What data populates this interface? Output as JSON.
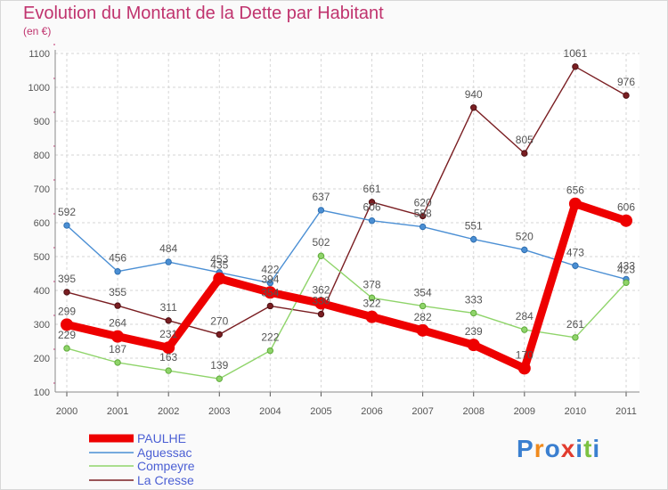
{
  "chart_data": {
    "type": "line",
    "title": "Evolution du Montant de la Dette par Habitant",
    "subtitle": "(en €)",
    "xlabel": "",
    "ylabel": "",
    "ylim": [
      100,
      1100
    ],
    "yticks": [
      100,
      200,
      300,
      400,
      500,
      600,
      700,
      800,
      900,
      1000,
      1100
    ],
    "categories": [
      "2000",
      "2001",
      "2002",
      "2003",
      "2004",
      "2005",
      "2006",
      "2007",
      "2008",
      "2009",
      "2010",
      "2011"
    ],
    "series": [
      {
        "name": "PAULHE",
        "color": "#ee0000",
        "values": [
          299,
          264,
          231,
          435,
          394,
          362,
          322,
          282,
          239,
          170,
          656,
          606
        ],
        "labels": [
          "299",
          "264",
          "231",
          "435",
          "394",
          "362",
          "322",
          "282",
          "239",
          "170",
          "656",
          "606"
        ]
      },
      {
        "name": "Aguessac",
        "color": "#4b8fd4",
        "values": [
          592,
          456,
          484,
          453,
          422,
          637,
          606,
          588,
          551,
          520,
          473,
          433
        ],
        "labels": [
          "592",
          "456",
          "484",
          "453",
          "422",
          "637",
          "606",
          "588",
          "551",
          "520",
          "473",
          "433"
        ]
      },
      {
        "name": "Compeyre",
        "color": "#8fd46a",
        "values": [
          229,
          187,
          163,
          139,
          222,
          502,
          378,
          354,
          333,
          284,
          261,
          423
        ],
        "labels": [
          "229",
          "187",
          "163",
          "139",
          "222",
          "502",
          "378",
          "354",
          "333",
          "284",
          "261",
          "423"
        ]
      },
      {
        "name": "La Cresse",
        "color": "#7a1e22",
        "values": [
          395,
          355,
          311,
          270,
          354,
          330,
          661,
          620,
          940,
          805,
          1061,
          976
        ],
        "labels": [
          "395",
          "355",
          "311",
          "270",
          "354",
          "330",
          "661",
          "620",
          "940",
          "805",
          "1061",
          "976"
        ]
      }
    ],
    "legend": "bottom-left"
  },
  "logo": {
    "letters": [
      "P",
      "r",
      "o",
      "x",
      "i",
      "t",
      "i"
    ],
    "colors": [
      "#3a7fd0",
      "#f08a1c",
      "#3a7fd0",
      "#e23c2f",
      "#3a7fd0",
      "#7cc242",
      "#3a7fd0"
    ]
  }
}
